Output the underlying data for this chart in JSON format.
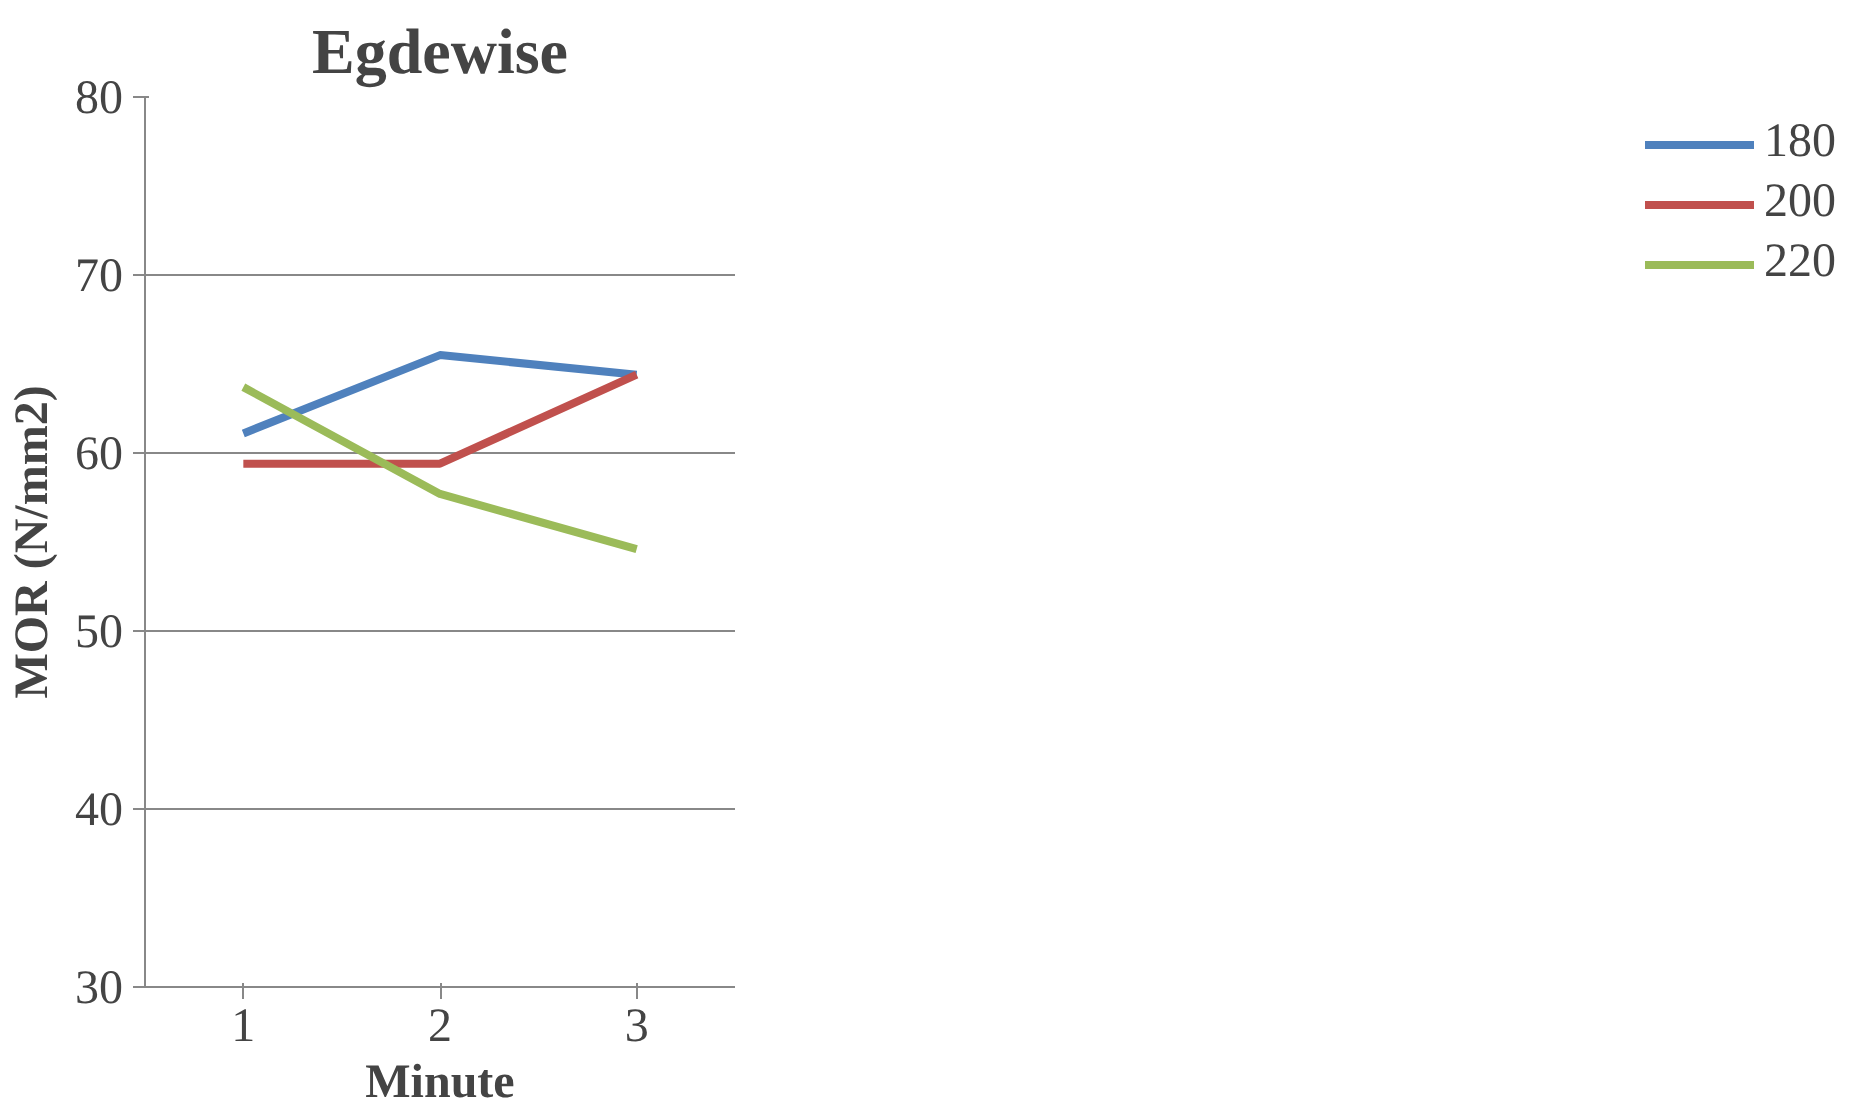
{
  "chart_data": {
    "type": "line",
    "title": "Egdewise",
    "xlabel": "Minute",
    "ylabel": "MOR (N/mm2)",
    "categories": [
      "1",
      "2",
      "3"
    ],
    "series": [
      {
        "name": "180",
        "color": "#4f81bd",
        "values": [
          61.1,
          65.5,
          64.4
        ]
      },
      {
        "name": "200",
        "color": "#c0504d",
        "values": [
          59.4,
          59.4,
          64.4
        ]
      },
      {
        "name": "220",
        "color": "#9bbb59",
        "values": [
          63.7,
          57.7,
          54.6
        ]
      }
    ],
    "ylim": [
      30,
      80
    ],
    "yticks": [
      30,
      40,
      50,
      60,
      70,
      80
    ],
    "grid": "y",
    "legend": "right"
  }
}
